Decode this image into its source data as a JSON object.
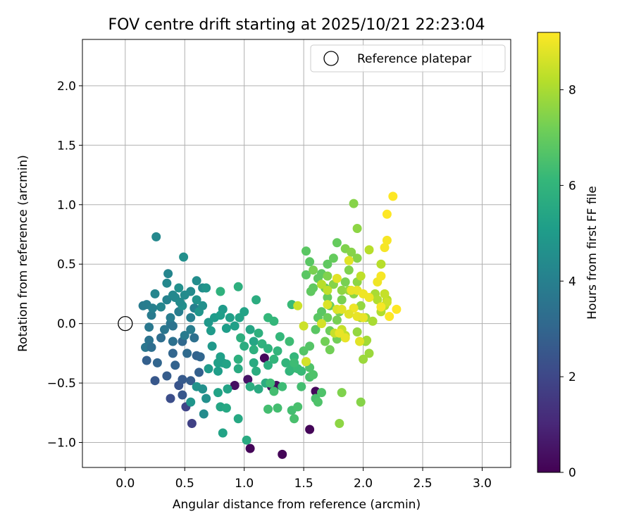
{
  "chart_data": {
    "type": "scatter",
    "title": "FOV centre drift starting at 2025/10/21 22:23:04",
    "xlabel": "Angular distance from reference (arcmin)",
    "ylabel": "Rotation from reference (arcmin)",
    "xlim": [
      -0.36,
      3.24
    ],
    "ylim": [
      -1.21,
      2.39
    ],
    "xticks": [
      0.0,
      0.5,
      1.0,
      1.5,
      2.0,
      2.5,
      3.0
    ],
    "xtick_labels": [
      "0.0",
      "0.5",
      "1.0",
      "1.5",
      "2.0",
      "2.5",
      "3.0"
    ],
    "yticks": [
      -1.0,
      -0.5,
      0.0,
      0.5,
      1.0,
      1.5,
      2.0
    ],
    "ytick_labels": [
      "−1.0",
      "−0.5",
      "0.0",
      "0.5",
      "1.0",
      "1.5",
      "2.0"
    ],
    "grid": true,
    "legend": {
      "position": "top-right",
      "entries": [
        "Reference platepar"
      ]
    },
    "reference_point": {
      "x": 0.0,
      "y": 0.0
    },
    "colorbar": {
      "label": "Hours from first FF file",
      "range": [
        0,
        9.2
      ],
      "ticks": [
        0,
        2,
        4,
        6,
        8
      ],
      "tick_labels": [
        "0",
        "2",
        "4",
        "6",
        "8"
      ],
      "colormap": "viridis",
      "colors": [
        "#440154",
        "#482878",
        "#3e4989",
        "#31688e",
        "#26828e",
        "#1f9e89",
        "#35b779",
        "#6ece58",
        "#b5de2b",
        "#fde725"
      ]
    },
    "points": [
      [
        1.05,
        -1.05,
        0.1
      ],
      [
        1.32,
        -1.1,
        0.1
      ],
      [
        1.55,
        -0.89,
        0.1
      ],
      [
        1.17,
        -0.29,
        0.2
      ],
      [
        1.27,
        -0.52,
        0.3
      ],
      [
        1.6,
        -0.57,
        0.2
      ],
      [
        1.23,
        -0.53,
        0.3
      ],
      [
        0.92,
        -0.52,
        0.4
      ],
      [
        1.03,
        -0.47,
        0.5
      ],
      [
        0.56,
        -0.84,
        1.8
      ],
      [
        0.51,
        -0.7,
        1.9
      ],
      [
        0.38,
        -0.63,
        2.2
      ],
      [
        0.25,
        -0.48,
        2.5
      ],
      [
        0.45,
        -0.52,
        2.4
      ],
      [
        0.48,
        -0.6,
        2.5
      ],
      [
        0.18,
        -0.31,
        2.8
      ],
      [
        0.35,
        -0.44,
        2.7
      ],
      [
        0.48,
        -0.47,
        2.6
      ],
      [
        0.55,
        -0.48,
        2.7
      ],
      [
        0.6,
        -0.27,
        2.9
      ],
      [
        0.62,
        -0.41,
        2.8
      ],
      [
        0.63,
        -0.28,
        3.0
      ],
      [
        0.4,
        -0.25,
        3.0
      ],
      [
        0.42,
        -0.35,
        2.9
      ],
      [
        0.27,
        -0.33,
        3.0
      ],
      [
        0.48,
        -0.15,
        3.1
      ],
      [
        0.52,
        -0.25,
        3.2
      ],
      [
        0.3,
        -0.12,
        3.3
      ],
      [
        0.4,
        -0.15,
        3.4
      ],
      [
        0.58,
        -0.12,
        3.4
      ],
      [
        0.2,
        -0.14,
        3.5
      ],
      [
        0.17,
        -0.2,
        3.6
      ],
      [
        0.38,
        0.0,
        3.6
      ],
      [
        0.2,
        -0.03,
        3.7
      ],
      [
        0.15,
        0.15,
        3.8
      ],
      [
        0.22,
        0.07,
        3.8
      ],
      [
        0.38,
        0.05,
        3.9
      ],
      [
        0.45,
        0.1,
        3.9
      ],
      [
        0.55,
        0.05,
        4.0
      ],
      [
        0.58,
        0.13,
        4.0
      ],
      [
        0.35,
        0.2,
        4.1
      ],
      [
        0.25,
        0.25,
        4.2
      ],
      [
        0.3,
        0.14,
        4.2
      ],
      [
        0.35,
        0.34,
        4.3
      ],
      [
        0.4,
        0.24,
        4.3
      ],
      [
        0.5,
        0.24,
        4.4
      ],
      [
        0.55,
        0.27,
        4.4
      ],
      [
        0.6,
        0.36,
        4.5
      ],
      [
        0.65,
        0.3,
        4.5
      ],
      [
        0.45,
        0.3,
        4.6
      ],
      [
        0.48,
        0.15,
        4.6
      ],
      [
        0.6,
        0.2,
        4.7
      ],
      [
        0.68,
        0.3,
        4.8
      ],
      [
        0.62,
        0.1,
        4.8
      ],
      [
        0.36,
        0.42,
        4.2
      ],
      [
        0.26,
        0.73,
        4.3
      ],
      [
        0.49,
        0.56,
        4.6
      ],
      [
        0.18,
        0.16,
        3.9
      ],
      [
        0.23,
        0.13,
        4.0
      ],
      [
        0.42,
        0.22,
        4.3
      ],
      [
        0.46,
        0.18,
        4.4
      ],
      [
        0.4,
        -0.02,
        3.5
      ],
      [
        0.33,
        -0.05,
        3.6
      ],
      [
        0.22,
        -0.2,
        3.3
      ],
      [
        0.5,
        -0.1,
        3.8
      ],
      [
        0.55,
        -0.05,
        3.9
      ],
      [
        0.65,
        0.15,
        4.6
      ],
      [
        0.7,
        0.01,
        4.9
      ],
      [
        0.75,
        0.05,
        5.0
      ],
      [
        0.82,
        0.12,
        5.0
      ],
      [
        0.72,
        -0.06,
        5.0
      ],
      [
        0.8,
        0.07,
        5.1
      ],
      [
        0.85,
        -0.04,
        5.1
      ],
      [
        0.88,
        0.05,
        5.2
      ],
      [
        0.92,
        -0.02,
        5.2
      ],
      [
        0.96,
        0.05,
        5.3
      ],
      [
        1.0,
        0.1,
        5.3
      ],
      [
        1.05,
        -0.05,
        5.4
      ],
      [
        1.08,
        -0.15,
        5.4
      ],
      [
        0.68,
        -0.63,
        4.6
      ],
      [
        0.66,
        -0.76,
        4.4
      ],
      [
        0.55,
        -0.66,
        4.8
      ],
      [
        0.6,
        -0.53,
        4.7
      ],
      [
        0.7,
        -0.38,
        5.0
      ],
      [
        0.65,
        -0.55,
        4.6
      ],
      [
        0.73,
        -0.19,
        4.9
      ],
      [
        0.78,
        -0.4,
        5.1
      ],
      [
        0.8,
        -0.28,
        5.2
      ],
      [
        0.82,
        -0.33,
        5.2
      ],
      [
        0.78,
        -0.33,
        5.2
      ],
      [
        0.82,
        -0.92,
        5.3
      ],
      [
        0.8,
        -0.7,
        5.4
      ],
      [
        0.85,
        -0.71,
        5.5
      ],
      [
        0.78,
        -0.58,
        5.3
      ],
      [
        0.86,
        -0.55,
        5.3
      ],
      [
        0.85,
        -0.34,
        5.3
      ],
      [
        0.95,
        -0.8,
        5.5
      ],
      [
        0.95,
        -0.38,
        5.6
      ],
      [
        1.02,
        -0.98,
        5.6
      ],
      [
        1.0,
        -0.19,
        5.7
      ],
      [
        1.1,
        -0.4,
        5.7
      ],
      [
        1.08,
        -0.22,
        5.8
      ],
      [
        1.08,
        -0.33,
        5.6
      ],
      [
        1.12,
        -0.55,
        5.6
      ],
      [
        1.15,
        -0.17,
        5.9
      ],
      [
        1.18,
        -0.5,
        5.7
      ],
      [
        1.2,
        -0.35,
        5.8
      ],
      [
        0.95,
        -0.3,
        5.8
      ],
      [
        0.97,
        -0.12,
        5.8
      ],
      [
        1.1,
        0.2,
        5.7
      ],
      [
        0.95,
        0.31,
        5.8
      ],
      [
        0.8,
        0.27,
        5.9
      ],
      [
        1.05,
        -0.53,
        5.7
      ],
      [
        1.12,
        -0.08,
        5.8
      ],
      [
        1.2,
        -0.21,
        5.9
      ],
      [
        1.25,
        -0.3,
        6.0
      ],
      [
        1.28,
        -0.23,
        6.0
      ],
      [
        1.25,
        0.02,
        6.1
      ],
      [
        1.2,
        0.05,
        6.1
      ],
      [
        1.3,
        -0.11,
        6.1
      ],
      [
        1.35,
        -0.33,
        6.0
      ],
      [
        1.38,
        -0.4,
        6.0
      ],
      [
        1.4,
        -0.38,
        6.1
      ],
      [
        1.42,
        -0.28,
        6.1
      ],
      [
        1.45,
        -0.38,
        6.2
      ],
      [
        1.48,
        -0.4,
        6.2
      ],
      [
        1.4,
        0.16,
        6.2
      ],
      [
        1.38,
        -0.15,
        6.3
      ],
      [
        1.42,
        -0.33,
        6.3
      ],
      [
        1.32,
        -0.53,
        6.3
      ],
      [
        1.22,
        -0.5,
        6.3
      ],
      [
        1.25,
        -0.57,
        6.4
      ],
      [
        1.2,
        -0.72,
        6.4
      ],
      [
        1.28,
        -0.71,
        6.4
      ],
      [
        1.4,
        -0.73,
        6.4
      ],
      [
        1.42,
        -0.8,
        6.5
      ],
      [
        1.45,
        -0.7,
        6.5
      ],
      [
        1.48,
        -0.53,
        6.4
      ],
      [
        1.55,
        -0.45,
        6.5
      ],
      [
        1.6,
        -0.63,
        6.5
      ],
      [
        1.62,
        -0.66,
        6.6
      ],
      [
        1.65,
        -0.58,
        6.6
      ],
      [
        1.58,
        -0.43,
        6.6
      ],
      [
        1.55,
        -0.37,
        6.6
      ],
      [
        1.5,
        -0.23,
        6.7
      ],
      [
        1.52,
        -0.32,
        6.7
      ],
      [
        1.55,
        -0.19,
        6.7
      ],
      [
        1.6,
        -0.05,
        6.8
      ],
      [
        1.62,
        0.05,
        6.8
      ],
      [
        1.65,
        0.1,
        6.8
      ],
      [
        1.58,
        0.3,
        6.9
      ],
      [
        1.65,
        0.42,
        6.9
      ],
      [
        1.7,
        0.5,
        6.9
      ],
      [
        1.75,
        0.55,
        7.0
      ],
      [
        1.78,
        0.68,
        7.0
      ],
      [
        1.52,
        0.61,
        6.8
      ],
      [
        1.55,
        0.52,
        6.8
      ],
      [
        1.52,
        0.41,
        6.8
      ],
      [
        1.56,
        0.27,
        6.9
      ],
      [
        1.62,
        0.38,
        6.9
      ],
      [
        1.68,
        0.3,
        7.0
      ],
      [
        1.7,
        0.22,
        7.0
      ],
      [
        1.72,
        0.15,
        7.1
      ],
      [
        1.7,
        0.05,
        7.1
      ],
      [
        1.72,
        -0.06,
        7.1
      ],
      [
        1.68,
        -0.15,
        7.2
      ],
      [
        1.72,
        -0.22,
        7.2
      ],
      [
        1.78,
        -0.13,
        7.2
      ],
      [
        1.78,
        0.03,
        7.3
      ],
      [
        1.8,
        0.1,
        7.3
      ],
      [
        1.82,
        0.2,
        7.3
      ],
      [
        1.85,
        0.35,
        7.3
      ],
      [
        1.88,
        0.45,
        7.4
      ],
      [
        1.85,
        0.63,
        7.4
      ],
      [
        1.9,
        0.6,
        7.5
      ],
      [
        1.95,
        0.55,
        7.5
      ],
      [
        1.92,
        1.01,
        7.5
      ],
      [
        1.95,
        0.8,
        7.6
      ],
      [
        1.95,
        0.35,
        7.6
      ],
      [
        1.92,
        0.25,
        7.6
      ],
      [
        1.98,
        0.15,
        7.7
      ],
      [
        1.98,
        0.05,
        7.7
      ],
      [
        1.95,
        -0.07,
        7.7
      ],
      [
        2.02,
        -0.15,
        7.7
      ],
      [
        2.05,
        -0.25,
        7.8
      ],
      [
        2.0,
        -0.3,
        7.8
      ],
      [
        1.98,
        -0.66,
        7.5
      ],
      [
        1.82,
        -0.58,
        7.4
      ],
      [
        1.8,
        -0.84,
        7.6
      ],
      [
        1.58,
        0.45,
        7.3
      ],
      [
        1.7,
        0.4,
        7.4
      ],
      [
        1.75,
        0.33,
        7.5
      ],
      [
        1.82,
        0.28,
        7.6
      ],
      [
        1.88,
        0.28,
        7.7
      ],
      [
        2.02,
        0.05,
        7.8
      ],
      [
        2.03,
        -0.14,
        7.9
      ],
      [
        2.08,
        0.02,
        8.0
      ],
      [
        2.1,
        0.25,
        8.0
      ],
      [
        2.12,
        0.2,
        8.1
      ],
      [
        2.15,
        0.1,
        8.1
      ],
      [
        2.18,
        0.15,
        8.2
      ],
      [
        2.2,
        0.2,
        8.2
      ],
      [
        2.15,
        0.5,
        8.2
      ],
      [
        2.05,
        0.62,
        8.2
      ],
      [
        1.98,
        0.4,
        8.3
      ],
      [
        2.18,
        0.25,
        8.4
      ],
      [
        2.2,
        0.18,
        8.5
      ],
      [
        1.65,
        0.33,
        8.2
      ],
      [
        1.7,
        0.28,
        8.3
      ],
      [
        1.85,
        -0.1,
        8.3
      ],
      [
        1.82,
        -0.05,
        8.4
      ],
      [
        1.76,
        -0.08,
        8.4
      ],
      [
        1.45,
        0.15,
        8.5
      ],
      [
        1.5,
        -0.02,
        8.5
      ],
      [
        1.52,
        -0.32,
        8.6
      ],
      [
        1.65,
        0.0,
        8.6
      ],
      [
        1.7,
        0.16,
        8.7
      ],
      [
        1.78,
        0.12,
        8.7
      ],
      [
        1.78,
        0.38,
        8.8
      ],
      [
        1.88,
        0.53,
        8.8
      ],
      [
        1.9,
        0.28,
        8.9
      ],
      [
        1.95,
        0.28,
        8.9
      ],
      [
        2.0,
        0.25,
        9.0
      ],
      [
        2.05,
        0.22,
        9.0
      ],
      [
        2.12,
        0.35,
        9.0
      ],
      [
        2.15,
        0.4,
        9.1
      ],
      [
        2.18,
        0.64,
        9.1
      ],
      [
        2.2,
        0.7,
        9.1
      ],
      [
        2.2,
        0.92,
        9.2
      ],
      [
        2.25,
        1.07,
        9.2
      ],
      [
        2.28,
        0.12,
        9.2
      ],
      [
        2.22,
        0.06,
        9.2
      ],
      [
        2.15,
        0.14,
        9.1
      ],
      [
        1.92,
        0.13,
        9.0
      ],
      [
        1.85,
        -0.12,
        8.9
      ],
      [
        1.8,
        -0.08,
        8.9
      ],
      [
        1.82,
        0.12,
        8.8
      ],
      [
        1.88,
        0.08,
        8.8
      ],
      [
        1.95,
        0.06,
        8.9
      ],
      [
        2.0,
        0.05,
        8.9
      ],
      [
        1.97,
        -0.15,
        8.8
      ]
    ]
  }
}
